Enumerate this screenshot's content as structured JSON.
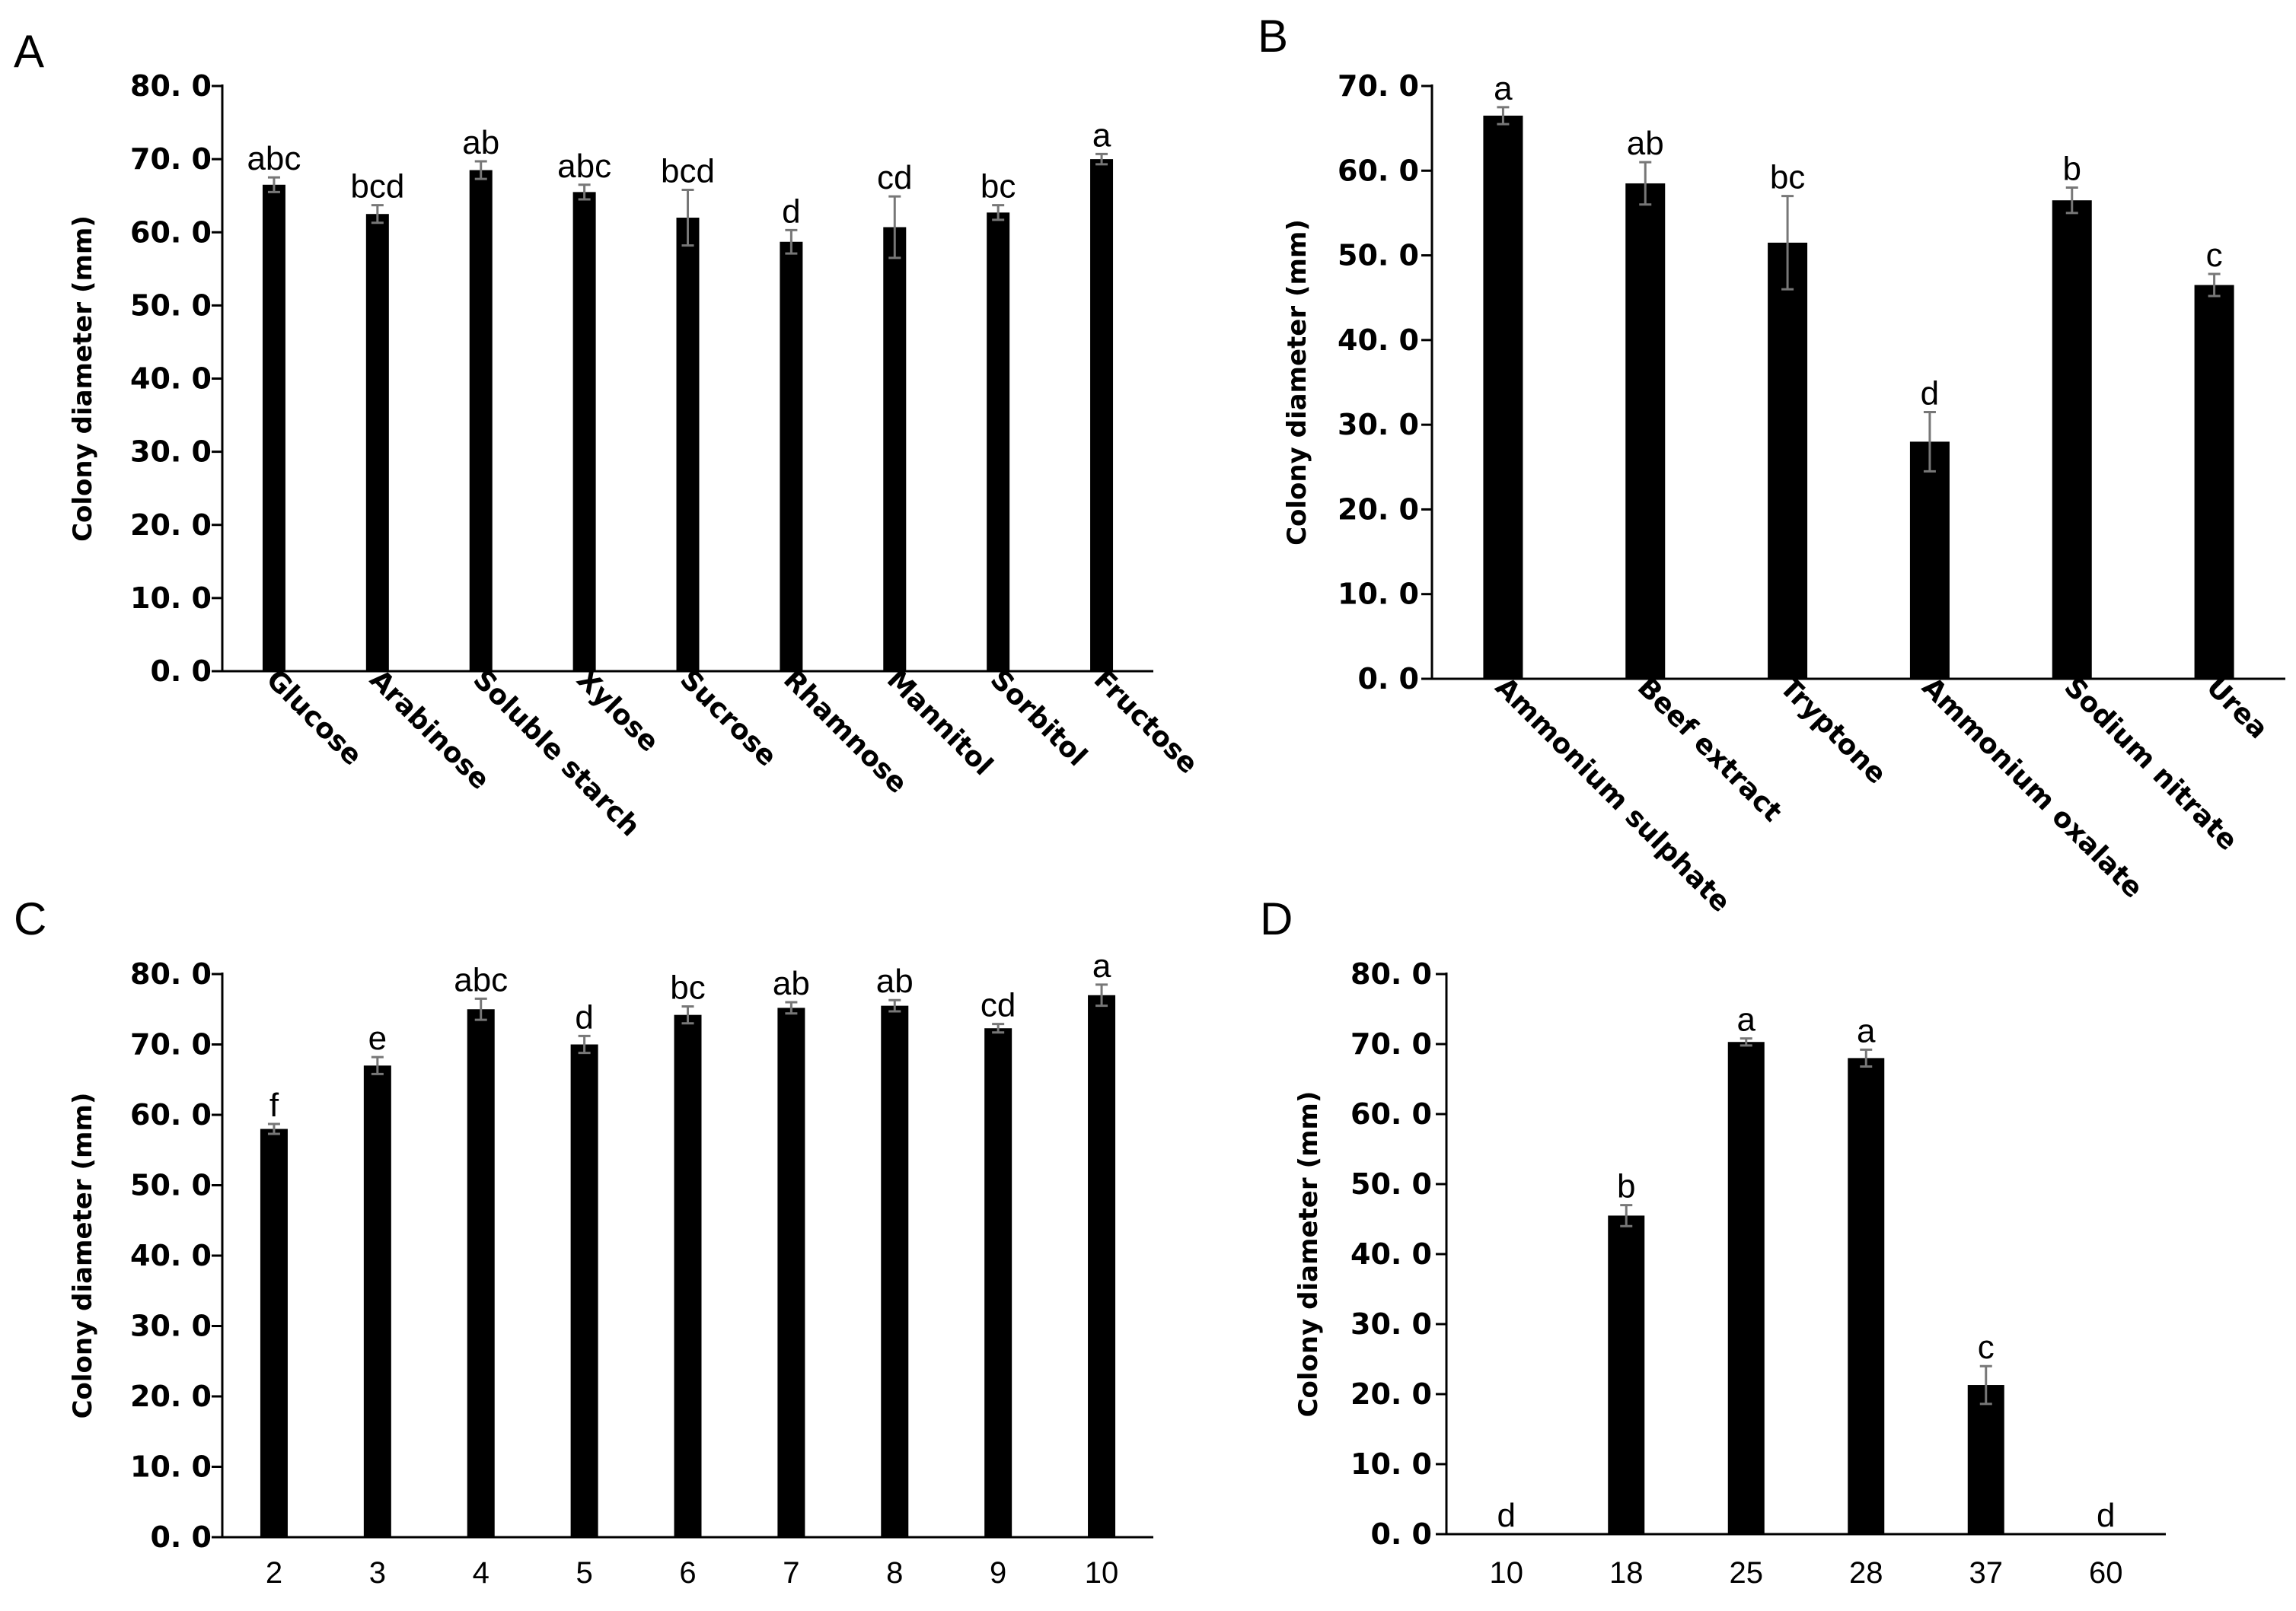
{
  "chart_data": [
    {
      "panel": "A",
      "type": "bar",
      "title": "",
      "xlabel": "",
      "ylabel": "Colony diameter (mm)",
      "ylim": [
        0,
        80
      ],
      "yticks": [
        "0. 0",
        "10. 0",
        "20. 0",
        "30. 0",
        "40. 0",
        "50. 0",
        "60. 0",
        "70. 0",
        "80. 0"
      ],
      "categories": [
        "Glucose",
        "Arabinose",
        "Soluble starch",
        "Xylose",
        "Sucrose",
        "Rhamnose",
        "Mannitol",
        "Sorbitol",
        "Fructose"
      ],
      "values": [
        66.5,
        62.5,
        68.5,
        65.5,
        62.0,
        58.7,
        60.7,
        62.7,
        70.0
      ],
      "errors": [
        1.0,
        1.2,
        1.2,
        1.0,
        3.8,
        1.6,
        4.2,
        1.0,
        0.7
      ],
      "significance": [
        "abc",
        "bcd",
        "ab",
        "abc",
        "bcd",
        "d",
        "cd",
        "bc",
        "a"
      ],
      "rotated_labels": true
    },
    {
      "panel": "B",
      "type": "bar",
      "title": "",
      "xlabel": "",
      "ylabel": "Colony diameter (mm)",
      "ylim": [
        0,
        70
      ],
      "yticks": [
        "0. 0",
        "10. 0",
        "20. 0",
        "30. 0",
        "40. 0",
        "50. 0",
        "60. 0",
        "70. 0"
      ],
      "categories": [
        "Ammonium sulphate",
        "Beef extract",
        "Tryptone",
        "Ammonium oxalate",
        "Sodium nitrate",
        "Urea"
      ],
      "values": [
        66.5,
        58.5,
        51.5,
        28.0,
        56.5,
        46.5
      ],
      "errors": [
        1.0,
        2.5,
        5.5,
        3.5,
        1.5,
        1.3
      ],
      "significance": [
        "a",
        "ab",
        "bc",
        "d",
        "b",
        "c"
      ],
      "rotated_labels": true
    },
    {
      "panel": "C",
      "type": "bar",
      "title": "",
      "xlabel": "",
      "ylabel": "Colony diameter (mm)",
      "ylim": [
        0,
        80
      ],
      "yticks": [
        "0. 0",
        "10. 0",
        "20. 0",
        "30. 0",
        "40. 0",
        "50. 0",
        "60. 0",
        "70. 0",
        "80. 0"
      ],
      "categories": [
        "2",
        "3",
        "4",
        "5",
        "6",
        "7",
        "8",
        "9",
        "10"
      ],
      "values": [
        58.0,
        67.0,
        75.0,
        70.0,
        74.2,
        75.2,
        75.5,
        72.3,
        77.0
      ],
      "errors": [
        0.7,
        1.2,
        1.5,
        1.2,
        1.2,
        0.8,
        0.8,
        0.6,
        1.5
      ],
      "significance": [
        "f",
        "e",
        "abc",
        "d",
        "bc",
        "ab",
        "ab",
        "cd",
        "a"
      ],
      "rotated_labels": false
    },
    {
      "panel": "D",
      "type": "bar",
      "title": "",
      "xlabel": "",
      "ylabel": "Colony diameter (mm)",
      "ylim": [
        0,
        80
      ],
      "yticks": [
        "0. 0",
        "10. 0",
        "20. 0",
        "30. 0",
        "40. 0",
        "50. 0",
        "60. 0",
        "70. 0",
        "80. 0"
      ],
      "categories": [
        "10",
        "18",
        "25",
        "28",
        "37",
        "60"
      ],
      "values": [
        0,
        45.5,
        70.3,
        68.0,
        21.3,
        0
      ],
      "errors": [
        0,
        1.5,
        0.5,
        1.2,
        2.7,
        0
      ],
      "significance": [
        "d",
        "b",
        "a",
        "a",
        "c",
        "d"
      ],
      "rotated_labels": false
    }
  ]
}
